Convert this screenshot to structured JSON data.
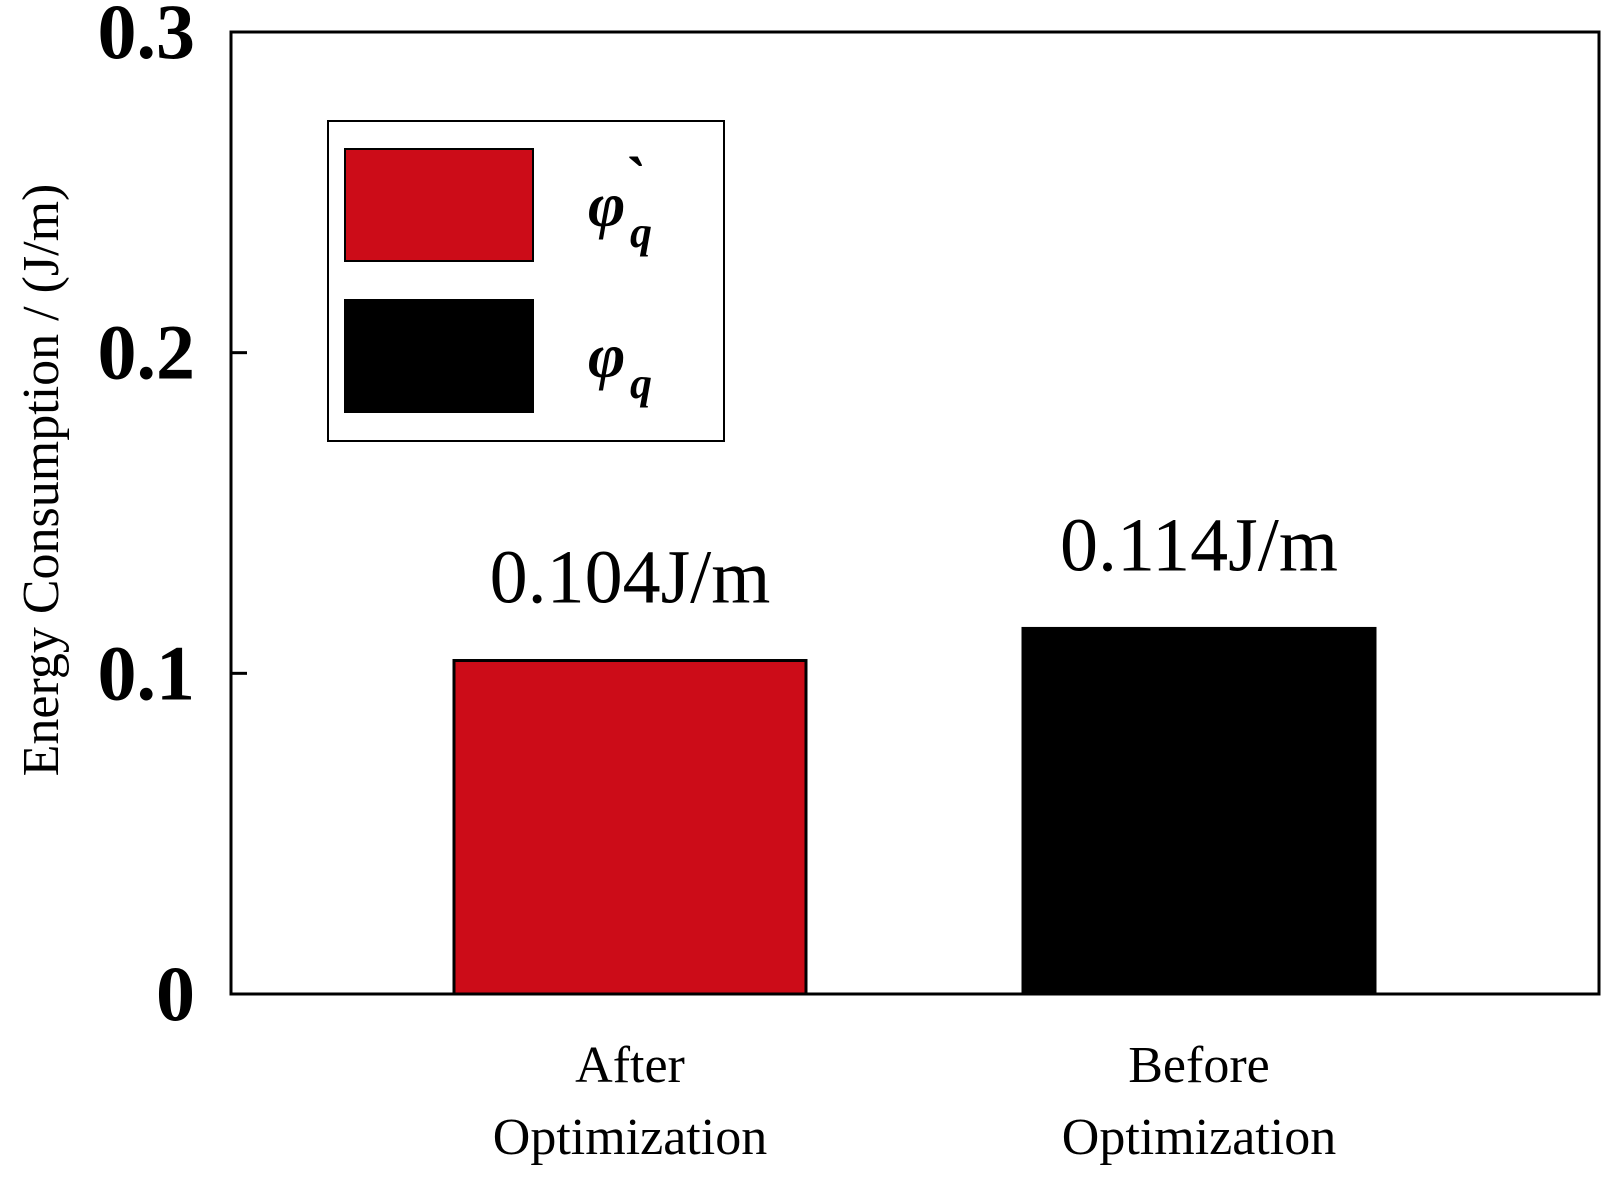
{
  "chart_data": {
    "type": "bar",
    "title": "",
    "xlabel": "",
    "ylabel": "Energy Consumption / (J/m)",
    "ylim": [
      0,
      0.3
    ],
    "yticks": [
      0,
      0.1,
      0.2,
      0.3
    ],
    "ytick_labels": [
      "0",
      "0.1",
      "0.2",
      "0.3"
    ],
    "categories": [
      [
        "After",
        "Optimization"
      ],
      [
        "Before",
        "Optimization"
      ]
    ],
    "values": [
      0.104,
      0.114
    ],
    "bar_colors": [
      "#cc0c18",
      "#000000"
    ],
    "data_labels": [
      "0.104J/m",
      "0.114J/m"
    ],
    "grid": false,
    "legend": {
      "position": "top-left",
      "entries": [
        {
          "symbol": "φ",
          "accent": "`",
          "subscript": "q",
          "color": "#cc0c18"
        },
        {
          "symbol": "φ",
          "accent": "",
          "subscript": "q",
          "color": "#000000"
        }
      ]
    }
  }
}
